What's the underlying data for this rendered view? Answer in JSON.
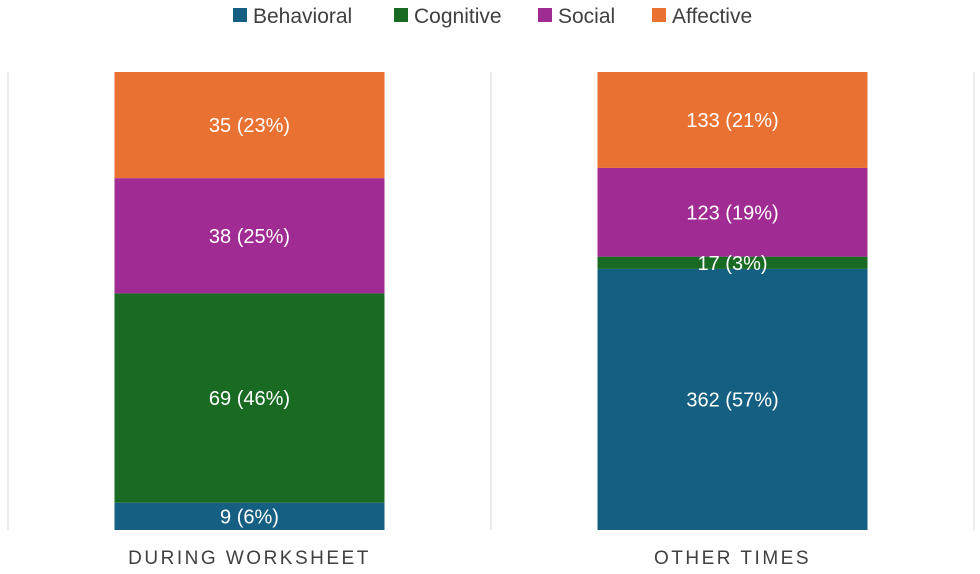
{
  "chart_data": {
    "type": "bar",
    "stacked": true,
    "categories": [
      "DURING WORKSHEET",
      "OTHER TIMES"
    ],
    "series": [
      {
        "name": "Behavioral",
        "color": "#156082",
        "values": [
          9,
          362
        ],
        "labels": [
          "9 (6%)",
          "362 (57%)"
        ]
      },
      {
        "name": "Cognitive",
        "color": "#196b24",
        "values": [
          69,
          17
        ],
        "labels": [
          "69 (46%)",
          "17 (3%)"
        ]
      },
      {
        "name": "Social",
        "color": "#a02b93",
        "values": [
          38,
          123
        ],
        "labels": [
          "38 (25%)",
          "123 (19%)"
        ]
      },
      {
        "name": "Affective",
        "color": "#e97132",
        "values": [
          35,
          133
        ],
        "labels": [
          "35 (23%)",
          "133 (21%)"
        ]
      }
    ],
    "normalized_to_percent": true,
    "legend_position": "top",
    "grid": "vertical separators"
  }
}
